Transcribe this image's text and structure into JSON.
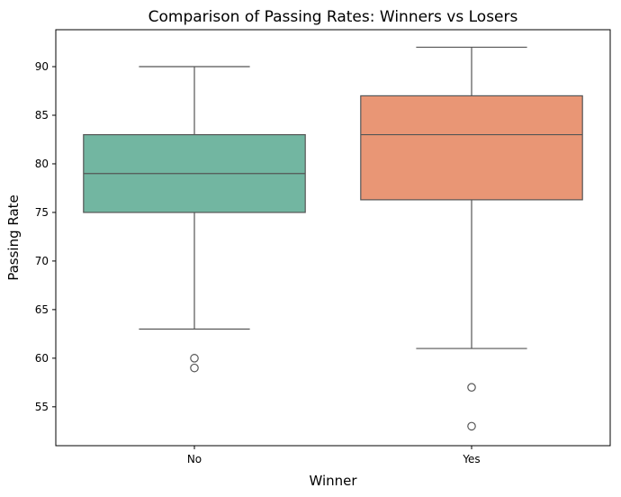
{
  "chart_data": {
    "type": "box",
    "title": "Comparison of Passing Rates: Winners vs Losers",
    "xlabel": "Winner",
    "ylabel": "Passing Rate",
    "categories": [
      "No",
      "Yes"
    ],
    "ylim": [
      51,
      93.8
    ],
    "yticks": [
      55,
      60,
      65,
      70,
      75,
      80,
      85,
      90
    ],
    "grid": false,
    "boxes": [
      {
        "category": "No",
        "whisker_low": 63,
        "q1": 75,
        "median": 79,
        "q3": 83,
        "whisker_high": 90,
        "outliers": [
          60,
          59
        ],
        "color": "#72b6a1"
      },
      {
        "category": "Yes",
        "whisker_low": 61,
        "q1": 76.3,
        "median": 83,
        "q3": 87,
        "whisker_high": 92,
        "outliers": [
          57,
          53
        ],
        "color": "#e99675"
      }
    ]
  }
}
